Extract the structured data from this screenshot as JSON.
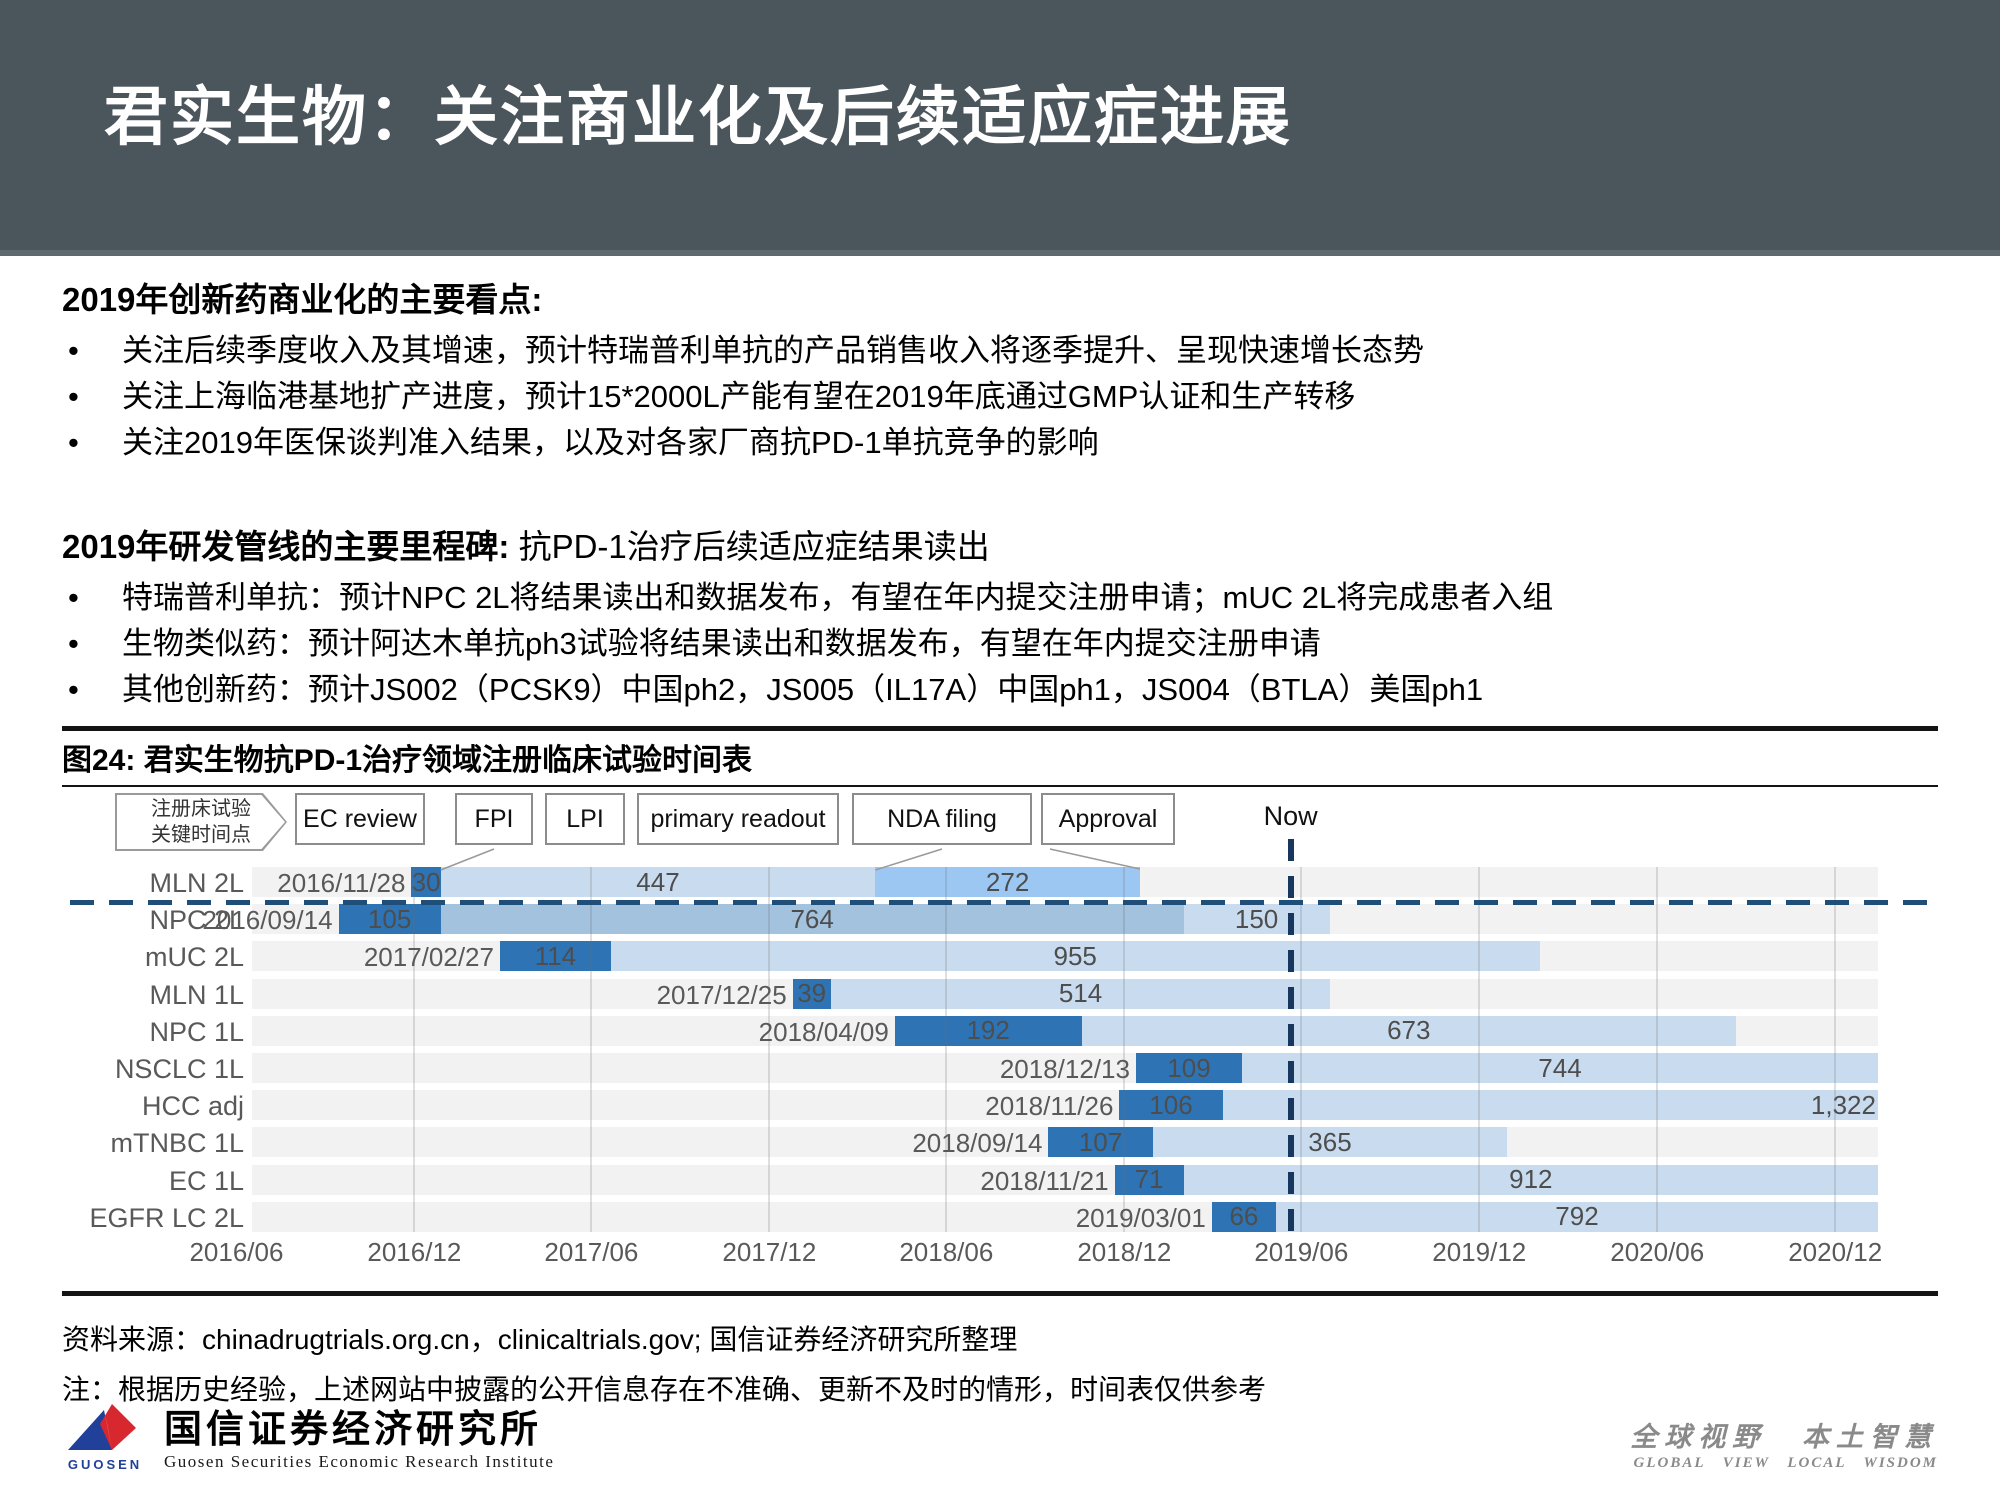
{
  "header": {
    "title": "君实生物：关注商业化及后续适应症进展"
  },
  "sections": [
    {
      "heading": "2019年创新药商业化的主要看点:",
      "heading_suffix": "",
      "bullets": [
        "关注后续季度收入及其增速，预计特瑞普利单抗的产品销售收入将逐季提升、呈现快速增长态势",
        "关注上海临港基地扩产进度，预计15*2000L产能有望在2019年底通过GMP认证和生产转移",
        "关注2019年医保谈判准入结果，以及对各家厂商抗PD-1单抗竞争的影响"
      ]
    },
    {
      "heading": "2019年研发管线的主要里程碑:",
      "heading_suffix": "抗PD-1治疗后续适应症结果读出",
      "bullets": [
        "特瑞普利单抗：预计NPC 2L将结果读出和数据发布，有望在年内提交注册申请；mUC 2L将完成患者入组",
        "生物类似药：预计阿达木单抗ph3试验将结果读出和数据发布，有望在年内提交注册申请",
        "其他创新药：预计JS002（PCSK9）中国ph2，JS005（IL17A）中国ph1，JS004（BTLA）美国ph1"
      ]
    }
  ],
  "figure": {
    "title": "图24: 君实生物抗PD-1治疗领域注册临床试验时间表"
  },
  "chart_data": {
    "type": "bar",
    "subtype": "gantt-timeline",
    "title": "君实生物抗PD-1治疗领域注册临床试验时间表",
    "legend": {
      "tag_lines": [
        "注册床试验",
        "关键时间点"
      ],
      "items": [
        "EC review",
        "FPI",
        "LPI",
        "primary readout",
        "NDA filing",
        "Approval"
      ],
      "now_label": "Now"
    },
    "timeline": {
      "start": "2016-06-17",
      "end": "2021-01-14",
      "now": "2019-05-21"
    },
    "x_ticks": [
      {
        "date": "2016-06-01",
        "label": "2016/06"
      },
      {
        "date": "2016-12-01",
        "label": "2016/12"
      },
      {
        "date": "2017-06-01",
        "label": "2017/06"
      },
      {
        "date": "2017-12-01",
        "label": "2017/12"
      },
      {
        "date": "2018-06-01",
        "label": "2018/06"
      },
      {
        "date": "2018-12-01",
        "label": "2018/12"
      },
      {
        "date": "2019-06-01",
        "label": "2019/06"
      },
      {
        "date": "2019-12-01",
        "label": "2019/12"
      },
      {
        "date": "2020-06-01",
        "label": "2020/06"
      },
      {
        "date": "2020-12-01",
        "label": "2020/12"
      }
    ],
    "rows": [
      {
        "label": "MLN 2L",
        "start": "2016-11-28",
        "start_label": "2016/11/28",
        "segments": [
          {
            "days": 30,
            "label": "30",
            "shade": "dark"
          },
          {
            "days": 447,
            "label": "447",
            "shade": "pale"
          },
          {
            "days": 272,
            "label": "272",
            "shade": "bright"
          }
        ]
      },
      {
        "label": "NPC 2L",
        "start": "2016-09-14",
        "start_label": "2016/09/14",
        "segments": [
          {
            "days": 105,
            "label": "105",
            "shade": "dark"
          },
          {
            "days": 764,
            "label": "764",
            "shade": "mid"
          },
          {
            "days": 150,
            "label": "150",
            "shade": "pale"
          }
        ]
      },
      {
        "label": "mUC 2L",
        "start": "2017-02-27",
        "start_label": "2017/02/27",
        "segments": [
          {
            "days": 114,
            "label": "114",
            "shade": "dark"
          },
          {
            "days": 955,
            "label": "955",
            "shade": "pale"
          }
        ]
      },
      {
        "label": "MLN 1L",
        "start": "2017-12-25",
        "start_label": "2017/12/25",
        "segments": [
          {
            "days": 39,
            "label": "39",
            "shade": "dark"
          },
          {
            "days": 514,
            "label": "514",
            "shade": "pale"
          }
        ]
      },
      {
        "label": "NPC 1L",
        "start": "2018-04-09",
        "start_label": "2018/04/09",
        "segments": [
          {
            "days": 192,
            "label": "192",
            "shade": "dark"
          },
          {
            "days": 673,
            "label": "673",
            "shade": "pale"
          }
        ]
      },
      {
        "label": "NSCLC 1L",
        "start": "2018-12-13",
        "start_label": "2018/12/13",
        "segments": [
          {
            "days": 109,
            "label": "109",
            "shade": "dark"
          },
          {
            "days": 744,
            "label": "744",
            "shade": "pale"
          }
        ]
      },
      {
        "label": "HCC adj",
        "start": "2018-11-26",
        "start_label": "2018/11/26",
        "segments": [
          {
            "days": 106,
            "label": "106",
            "shade": "dark"
          },
          {
            "days": 1322,
            "label": "1,322",
            "shade": "pale",
            "align": "right"
          }
        ]
      },
      {
        "label": "mTNBC 1L",
        "start": "2018-09-14",
        "start_label": "2018/09/14",
        "segments": [
          {
            "days": 107,
            "label": "107",
            "shade": "dark"
          },
          {
            "days": 365,
            "label": "365",
            "shade": "pale"
          }
        ]
      },
      {
        "label": "EC 1L",
        "start": "2018-11-21",
        "start_label": "2018/11/21",
        "segments": [
          {
            "days": 71,
            "label": "71",
            "shade": "dark"
          },
          {
            "days": 912,
            "label": "912",
            "shade": "pale"
          }
        ]
      },
      {
        "label": "EGFR LC 2L",
        "start": "2019-03-01",
        "start_label": "2019/03/01",
        "segments": [
          {
            "days": 66,
            "label": "66",
            "shade": "dark"
          },
          {
            "days": 792,
            "label": "792",
            "shade": "pale"
          }
        ]
      }
    ],
    "colors": {
      "dark": "#2e74b5",
      "mid": "#a3c2de",
      "pale": "#c9dcef",
      "bright": "#9cc7f2",
      "track": "#f2f2f2",
      "grid": "#cfcfcf",
      "now_line": "#17375e",
      "dashed_line": "#1f4e79"
    }
  },
  "footer": {
    "source": "资料来源：chinadrugtrials.org.cn，clinicaltrials.gov;  国信证券经济研究所整理",
    "note": "注：根据历史经验，上述网站中披露的公开信息存在不准确、更新不及时的情形，时间表仅供参考"
  },
  "brand": {
    "logo_text": "GUOSEN",
    "name_cn": "国信证券经济研究所",
    "name_en": "Guosen Securities Economic Research Institute",
    "slogan_cn": "全球视野  本土智慧",
    "slogan_en": "GLOBAL VIEW   LOCAL WISDOM"
  }
}
